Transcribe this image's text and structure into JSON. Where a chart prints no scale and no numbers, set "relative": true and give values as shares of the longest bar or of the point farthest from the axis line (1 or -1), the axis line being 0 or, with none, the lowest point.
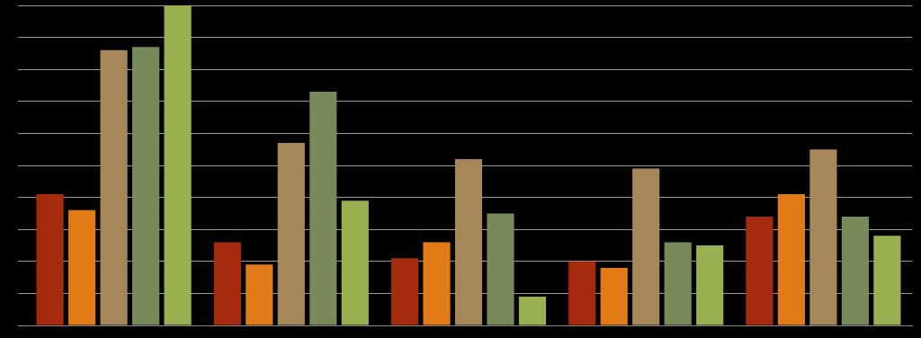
{
  "chart_data": {
    "type": "bar",
    "relative": true,
    "grid": "y",
    "legend": false,
    "categories": [
      null,
      null,
      null,
      null,
      null
    ],
    "series": [
      {
        "color": "#a52a0e",
        "values": [
          0.41,
          0.26,
          0.21,
          0.2,
          0.34
        ]
      },
      {
        "color": "#e07b17",
        "values": [
          0.36,
          0.19,
          0.26,
          0.18,
          0.41
        ]
      },
      {
        "color": "#a5875a",
        "values": [
          0.86,
          0.57,
          0.52,
          0.49,
          0.55
        ]
      },
      {
        "color": "#788a5a",
        "values": [
          0.87,
          0.73,
          0.35,
          0.26,
          0.34
        ]
      },
      {
        "color": "#98b050",
        "values": [
          1,
          0.39,
          0.09,
          0.25,
          0.28
        ]
      }
    ]
  }
}
